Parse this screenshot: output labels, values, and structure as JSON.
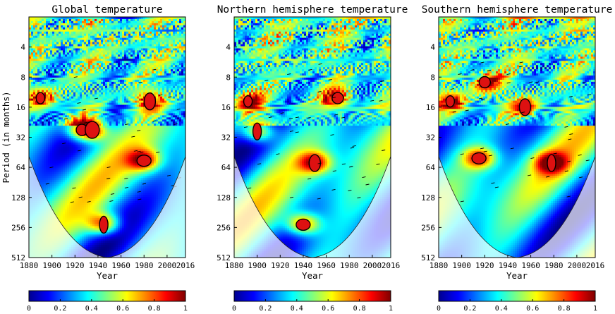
{
  "chart_data": [
    {
      "type": "heatmap",
      "title": "Global temperature",
      "xlabel": "Year",
      "ylabel": "Period (in months)",
      "x_range": [
        1880,
        2016
      ],
      "x_ticks": [
        "1880",
        "1900",
        "1920",
        "1940",
        "1960",
        "1980",
        "2000",
        "2016"
      ],
      "y_scale": "log2",
      "y_range": [
        2,
        512
      ],
      "y_ticks": [
        "4",
        "8",
        "16",
        "32",
        "64",
        "128",
        "256",
        "512"
      ],
      "colorbar": {
        "min": 0,
        "max": 1,
        "ticks": [
          "0",
          "0.2",
          "0.4",
          "0.6",
          "0.8",
          "1"
        ]
      },
      "significant_regions": [
        {
          "year": 1890,
          "period": 13
        },
        {
          "year": 1985,
          "period": 14
        },
        {
          "year": 1980,
          "period": 55
        },
        {
          "year": 1945,
          "period": 240
        },
        {
          "year": 1926,
          "period": 27
        },
        {
          "year": 1935,
          "period": 27
        }
      ]
    },
    {
      "type": "heatmap",
      "title": "Northern hemisphere temperature",
      "xlabel": "Year",
      "ylabel": "",
      "x_range": [
        1880,
        2016
      ],
      "x_ticks": [
        "1880",
        "1900",
        "1920",
        "1940",
        "1960",
        "1980",
        "2000",
        "2016"
      ],
      "y_scale": "log2",
      "y_range": [
        2,
        512
      ],
      "y_ticks": [
        "4",
        "8",
        "16",
        "32",
        "64",
        "128",
        "256",
        "512"
      ],
      "colorbar": {
        "min": 0,
        "max": 1,
        "ticks": [
          "0",
          "0.2",
          "0.4",
          "0.6",
          "0.8",
          "1"
        ]
      },
      "significant_regions": [
        {
          "year": 1892,
          "period": 14
        },
        {
          "year": 1950,
          "period": 58
        },
        {
          "year": 1940,
          "period": 240
        },
        {
          "year": 1900,
          "period": 28
        },
        {
          "year": 1970,
          "period": 13
        }
      ]
    },
    {
      "type": "heatmap",
      "title": "Southern hemisphere temperature",
      "xlabel": "Year",
      "ylabel": "",
      "x_range": [
        1880,
        2016
      ],
      "x_ticks": [
        "1880",
        "1900",
        "1920",
        "1940",
        "1960",
        "1980",
        "2000",
        "2016"
      ],
      "y_scale": "log2",
      "y_range": [
        2,
        512
      ],
      "y_ticks": [
        "4",
        "8",
        "16",
        "32",
        "64",
        "128",
        "256",
        "512"
      ],
      "colorbar": {
        "min": 0,
        "max": 1,
        "ticks": [
          "0",
          "0.2",
          "0.4",
          "0.6",
          "0.8",
          "1"
        ]
      },
      "significant_regions": [
        {
          "year": 1890,
          "period": 14
        },
        {
          "year": 1955,
          "period": 16
        },
        {
          "year": 1915,
          "period": 52
        },
        {
          "year": 1978,
          "period": 58
        },
        {
          "year": 1920,
          "period": 9
        }
      ]
    }
  ]
}
